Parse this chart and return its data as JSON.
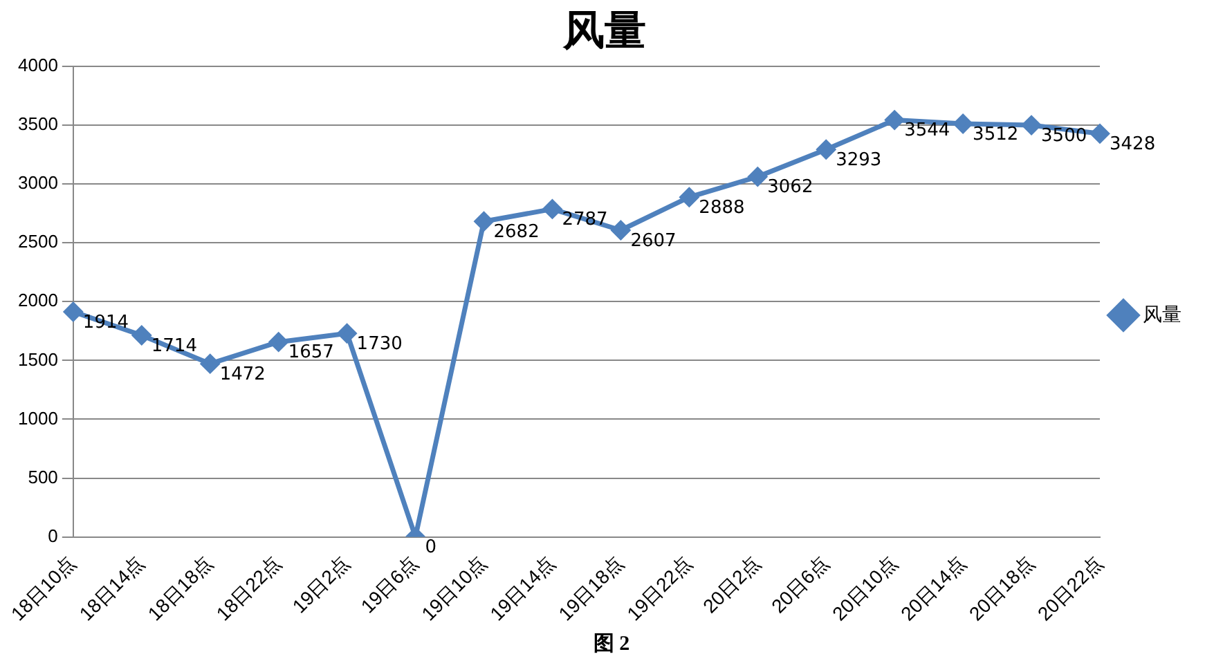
{
  "chart_data": {
    "type": "line",
    "title": "风量",
    "categories": [
      "18日10点",
      "18日14点",
      "18日18点",
      "18日22点",
      "19日2点",
      "19日6点",
      "19日10点",
      "19日14点",
      "19日18点",
      "19日22点",
      "20日2点",
      "20日6点",
      "20日10点",
      "20日14点",
      "20日18点",
      "20日22点"
    ],
    "series": [
      {
        "name": "风量",
        "color": "#4f81bd",
        "values": [
          1914,
          1714,
          1472,
          1657,
          1730,
          0,
          2682,
          2787,
          2607,
          2888,
          3062,
          3293,
          3544,
          3512,
          3500,
          3428
        ]
      }
    ],
    "ylim": [
      0,
      4000
    ],
    "yticks": [
      0,
      500,
      1000,
      1500,
      2000,
      2500,
      3000,
      3500,
      4000
    ],
    "grid": "y",
    "legend": "right",
    "marker": "diamond",
    "line_style": "solid",
    "data_labels": true,
    "annotations": [
      "图 2"
    ]
  }
}
